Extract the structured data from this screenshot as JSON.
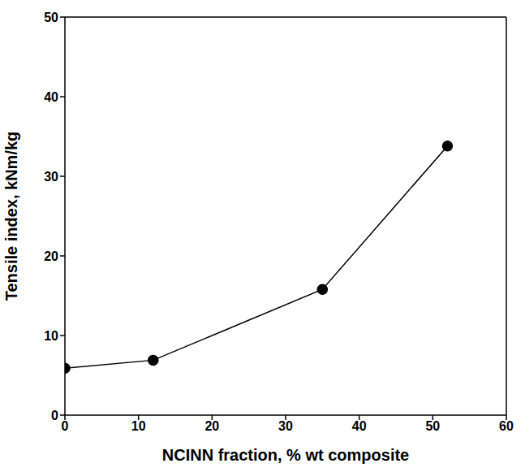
{
  "chart_data": {
    "type": "line",
    "x_label": "NCINN fraction, % wt composite",
    "y_label": "Tensile index, kNm/kg",
    "x": [
      0,
      12,
      35,
      52
    ],
    "values": [
      5.9,
      6.9,
      15.8,
      33.8
    ],
    "color": "#000000",
    "marker": "circle",
    "xlim": [
      0,
      60
    ],
    "xticks": [
      0,
      10,
      20,
      30,
      40,
      50,
      60
    ],
    "ylim": [
      0,
      50
    ],
    "yticks": [
      0,
      10,
      20,
      30,
      40,
      50
    ],
    "grid": false
  }
}
